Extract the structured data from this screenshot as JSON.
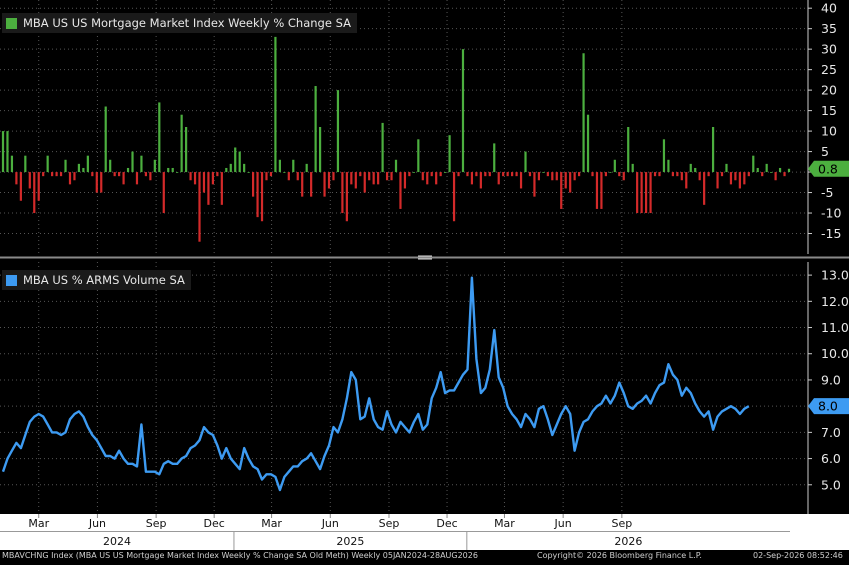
{
  "chart_data": [
    {
      "type": "bar",
      "title": "MBA US US Mortgage Market Index Weekly % Change SA",
      "ylim": [
        -20,
        42
      ],
      "yticks": [
        -15,
        -10,
        -5,
        0,
        5,
        10,
        15,
        20,
        25,
        30,
        35,
        40
      ],
      "last_value_label": "0.8",
      "colors": {
        "positive": "#4caf3f",
        "negative": "#d42a2a",
        "last_badge": "#4caf3f"
      },
      "values": [
        10,
        10,
        4,
        -3,
        -7,
        4,
        -4,
        -10,
        -7,
        -1,
        4,
        -1,
        -1,
        -1,
        3,
        -3,
        -2,
        2,
        1,
        4,
        -1,
        -5,
        -5,
        16,
        3,
        -1,
        -1,
        -3,
        1,
        5,
        -3,
        4,
        -1,
        -2,
        3,
        17,
        -10,
        1,
        1,
        0,
        14,
        11,
        -2,
        -3,
        -17,
        -5,
        -8,
        -3,
        -1,
        -8,
        1,
        2,
        6,
        5,
        2,
        0,
        -6,
        -11,
        -12,
        -2,
        -1,
        33,
        3,
        0,
        -2,
        3,
        -2,
        -6,
        2,
        -6,
        21,
        11,
        -6,
        -4,
        -2,
        20,
        -10,
        -12,
        -3,
        -4,
        -1,
        -5,
        -2,
        -3,
        -3,
        12,
        -2,
        -2,
        3,
        -9,
        -4,
        -1,
        0,
        8,
        -2,
        -3,
        -1,
        -3,
        -1,
        0,
        9,
        -12,
        -1,
        30,
        -1,
        -3,
        -1,
        -4,
        -1,
        -1,
        7,
        -3,
        -1,
        -1,
        -1,
        -1,
        -4,
        5,
        -1,
        -6,
        -2,
        0,
        -1,
        -2,
        -2,
        -9,
        -4,
        -5,
        -2,
        -1,
        29,
        14,
        -1,
        -9,
        -9,
        -1,
        0,
        3,
        -1,
        -2,
        11,
        2,
        -10,
        -10,
        -10,
        -10,
        -1,
        -1,
        8,
        3,
        -1,
        -1,
        -2,
        -4,
        2,
        1,
        -2,
        -8,
        -1,
        11,
        -4,
        -1,
        2,
        -3,
        -2,
        -4,
        -3,
        -1,
        4,
        1,
        -1,
        2,
        0,
        -2,
        1,
        -1,
        0.8
      ],
      "legend_placement": "top-left",
      "grid": true
    },
    {
      "type": "line",
      "title": "MBA US % ARMS Volume SA",
      "ylim": [
        4.0,
        13.5
      ],
      "yticks": [
        5.0,
        6.0,
        7.0,
        8.0,
        9.0,
        10.0,
        11.0,
        12.0,
        13.0
      ],
      "last_value_label": "8.0",
      "colors": {
        "line": "#3d9bf2",
        "last_badge": "#3d9bf2"
      },
      "values": [
        5.5,
        6.0,
        6.3,
        6.6,
        6.4,
        6.9,
        7.4,
        7.6,
        7.7,
        7.6,
        7.3,
        7.0,
        7.0,
        6.9,
        7.0,
        7.5,
        7.7,
        7.8,
        7.6,
        7.2,
        6.9,
        6.7,
        6.4,
        6.1,
        6.1,
        6.0,
        6.3,
        6.0,
        5.8,
        5.8,
        5.7,
        7.3,
        5.5,
        5.5,
        5.5,
        5.4,
        5.8,
        5.9,
        5.8,
        5.8,
        6.0,
        6.1,
        6.4,
        6.5,
        6.7,
        7.2,
        7.0,
        6.9,
        6.5,
        6.0,
        6.4,
        6.0,
        5.8,
        5.6,
        6.4,
        6.0,
        5.7,
        5.6,
        5.2,
        5.4,
        5.4,
        5.3,
        4.8,
        5.3,
        5.5,
        5.7,
        5.7,
        5.9,
        6.0,
        6.2,
        5.9,
        5.6,
        6.1,
        6.5,
        7.2,
        7.0,
        7.5,
        8.3,
        9.3,
        9.0,
        7.5,
        7.6,
        8.3,
        7.5,
        7.2,
        7.1,
        7.8,
        7.3,
        7.0,
        7.4,
        7.2,
        7.0,
        7.4,
        7.7,
        7.1,
        7.3,
        8.3,
        8.7,
        9.3,
        8.5,
        8.6,
        8.6,
        8.9,
        9.2,
        9.4,
        12.9,
        9.8,
        8.5,
        8.7,
        9.4,
        10.9,
        9.1,
        8.7,
        8.0,
        7.7,
        7.5,
        7.2,
        7.7,
        7.5,
        7.2,
        7.9,
        8.0,
        7.5,
        6.9,
        7.3,
        7.7,
        8.0,
        7.7,
        6.3,
        7.0,
        7.4,
        7.5,
        7.8,
        8.0,
        8.1,
        8.4,
        8.1,
        8.4,
        8.9,
        8.5,
        8.0,
        7.9,
        8.1,
        8.2,
        8.4,
        8.1,
        8.5,
        8.8,
        8.9,
        9.6,
        9.2,
        9.0,
        8.4,
        8.7,
        8.5,
        8.1,
        7.8,
        7.6,
        7.8,
        7.1,
        7.6,
        7.8,
        7.9,
        8.0,
        7.9,
        7.7,
        7.9,
        8.0
      ],
      "legend_placement": "top-left",
      "grid": true
    }
  ],
  "x_axis": {
    "months": [
      "Mar",
      "Jun",
      "Sep",
      "Dec",
      "Mar",
      "Jun",
      "Sep",
      "Dec",
      "Mar",
      "Jun",
      "Sep"
    ],
    "years": [
      "2024",
      "2025",
      "2026"
    ],
    "start": "05JAN2024",
    "end": "28AUG2026"
  },
  "footer": {
    "left": "MBAVCHNG Index (MBA US US Mortgage Market Index Weekly % Change SA Old Meth) Weekly 05JAN2024-28AUG2026",
    "center": "Copyright© 2026 Bloomberg Finance L.P.",
    "right": "02-Sep-2026 08:52:46"
  }
}
